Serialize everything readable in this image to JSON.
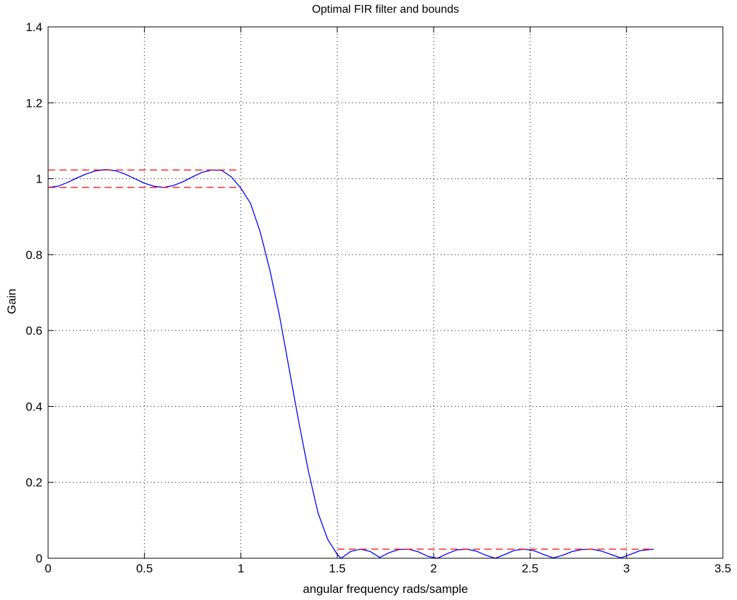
{
  "chart_data": {
    "type": "line",
    "title": "Optimal FIR filter and bounds",
    "xlabel": "angular frequency rads/sample",
    "ylabel": "Gain",
    "xlim": [
      0,
      3.5
    ],
    "ylim": [
      0,
      1.4
    ],
    "xticks": [
      0,
      0.5,
      1,
      1.5,
      2,
      2.5,
      3,
      3.5
    ],
    "yticks": [
      0,
      0.2,
      0.4,
      0.6,
      0.8,
      1,
      1.2,
      1.4
    ],
    "xtick_labels": [
      "0",
      "0.5",
      "1",
      "1.5",
      "2",
      "2.5",
      "3",
      "3.5"
    ],
    "ytick_labels": [
      "0",
      "0.2",
      "0.4",
      "0.6",
      "0.8",
      "1",
      "1.2",
      "1.4"
    ],
    "grid": true,
    "colors": {
      "response": "#0000ff",
      "bounds": "#ff0000",
      "axes": "#000000"
    },
    "series": [
      {
        "style": "solid",
        "color": "#0000ff",
        "x": [
          0,
          0.05,
          0.1,
          0.15,
          0.2,
          0.25,
          0.3,
          0.35,
          0.4,
          0.45,
          0.5,
          0.55,
          0.6,
          0.65,
          0.7,
          0.75,
          0.8,
          0.85,
          0.9,
          0.95,
          1.0,
          1.05,
          1.1,
          1.15,
          1.2,
          1.25,
          1.3,
          1.35,
          1.4,
          1.45,
          1.5,
          1.52,
          1.57,
          1.62,
          1.67,
          1.72,
          1.77,
          1.82,
          1.87,
          1.92,
          1.97,
          2.02,
          2.07,
          2.12,
          2.17,
          2.22,
          2.27,
          2.32,
          2.37,
          2.42,
          2.47,
          2.52,
          2.57,
          2.62,
          2.67,
          2.72,
          2.77,
          2.82,
          2.87,
          2.92,
          2.97,
          3.02,
          3.07,
          3.1416
        ],
        "y": [
          0.977,
          0.98,
          0.99,
          1.002,
          1.013,
          1.021,
          1.024,
          1.021,
          1.012,
          1.0,
          0.988,
          0.98,
          0.977,
          0.982,
          0.992,
          1.005,
          1.017,
          1.023,
          1.022,
          1.005,
          0.975,
          0.935,
          0.86,
          0.76,
          0.64,
          0.5,
          0.36,
          0.23,
          0.12,
          0.05,
          0.01,
          0.0,
          0.018,
          0.024,
          0.018,
          0.002,
          0.015,
          0.023,
          0.024,
          0.017,
          0.005,
          0.0,
          0.012,
          0.022,
          0.024,
          0.019,
          0.008,
          0.0,
          0.01,
          0.021,
          0.024,
          0.02,
          0.01,
          0.001,
          0.008,
          0.018,
          0.023,
          0.024,
          0.019,
          0.01,
          0.001,
          0.01,
          0.02,
          0.024
        ]
      },
      {
        "style": "dashed",
        "color": "#ff0000",
        "x": [
          0,
          1.0
        ],
        "y": [
          1.023,
          1.023
        ]
      },
      {
        "style": "dashed",
        "color": "#ff0000",
        "x": [
          0,
          1.0
        ],
        "y": [
          0.977,
          0.977
        ]
      },
      {
        "style": "dashed",
        "color": "#ff0000",
        "x": [
          1.5,
          3.1416
        ],
        "y": [
          0.024,
          0.024
        ]
      }
    ]
  }
}
